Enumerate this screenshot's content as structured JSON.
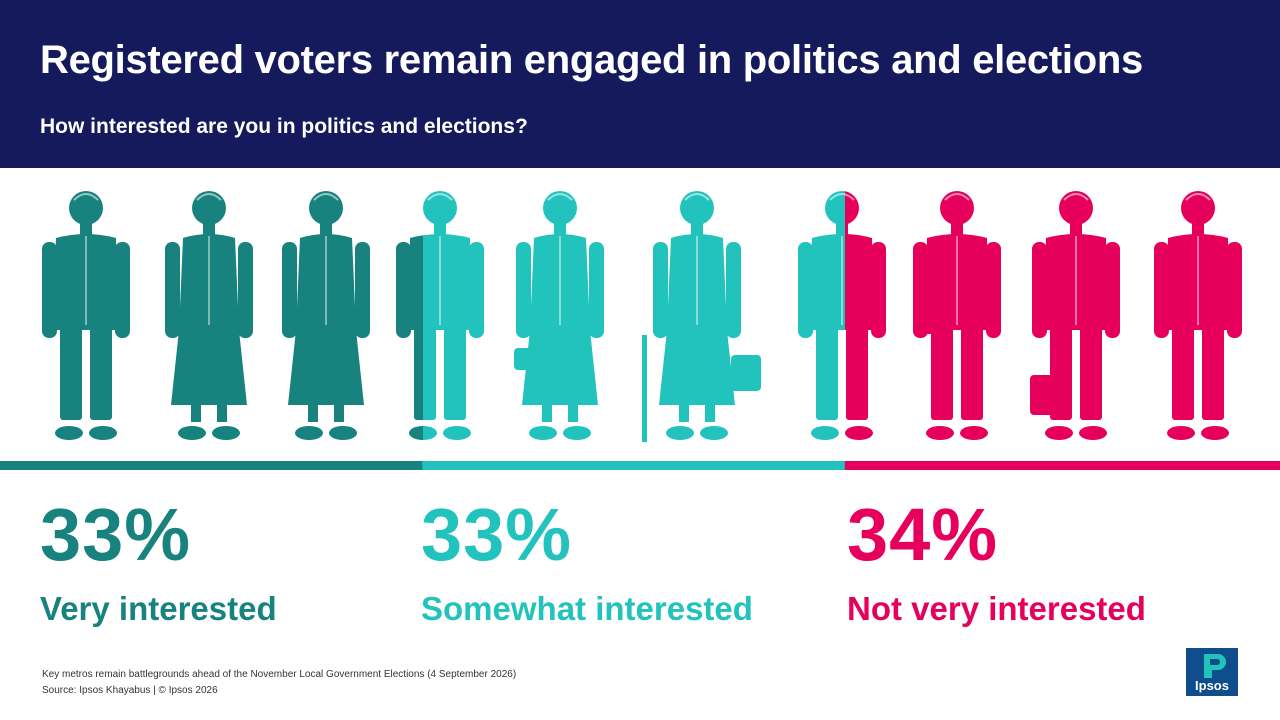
{
  "header": {
    "title": "Registered voters remain engaged in politics and elections",
    "subtitle": "How interested are you in politics and elections?"
  },
  "colors": {
    "header_bg": "#141a5b",
    "very": "#17827e",
    "somewhat": "#22c3bd",
    "not": "#e6005c"
  },
  "chart_data": {
    "type": "bar",
    "title": "",
    "categories": [
      "Very interested",
      "Somewhat interested",
      "Not very interested"
    ],
    "values": [
      33,
      33,
      34
    ],
    "unit": "%",
    "stats": [
      {
        "percent": "33%",
        "label": "Very interested",
        "color": "#17827e"
      },
      {
        "percent": "33%",
        "label": "Somewhat interested",
        "color": "#22c3bd"
      },
      {
        "percent": "34%",
        "label": "Not very interested",
        "color": "#e6005c"
      }
    ],
    "people_icons": [
      "man-blazer-icon",
      "woman-dress-icon",
      "woman-scarf-icon",
      "person-tshirt-icon",
      "woman-dress-bag-icon",
      "elderly-woman-cane-icon",
      "teen-hoodie-cap-icon",
      "woman-crossbody-bag-icon",
      "woman-suit-handbag-icon",
      "man-polo-icon"
    ]
  },
  "footer": {
    "line1": "Key metros remain battlegrounds ahead of the November Local Government Elections (4 September 2026)",
    "line2": "Source: Ipsos Khayabus  |  © Ipsos 2026"
  },
  "logo": {
    "text": "Ipsos",
    "color": "#0f4d8c",
    "icon": "ipsos-logo-icon"
  }
}
